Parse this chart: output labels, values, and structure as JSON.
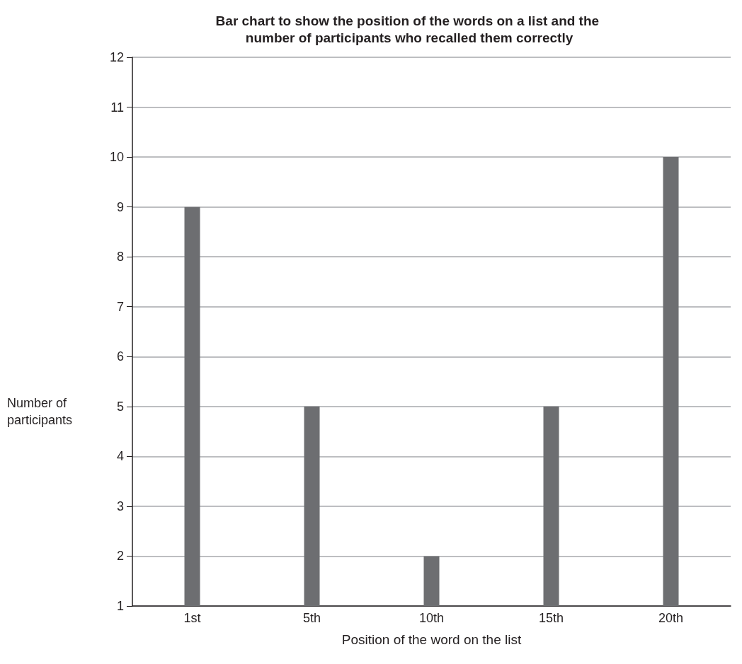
{
  "chart_data": {
    "type": "bar",
    "title": "Bar chart to show the position of the words on a list and the number of participants who recalled them correctly",
    "categories": [
      "1st",
      "5th",
      "10th",
      "15th",
      "20th"
    ],
    "values": [
      9,
      5,
      2,
      5,
      10
    ],
    "color": "#6d6e71",
    "xlabel": "Position of the word on the list",
    "ylabel": "Number of participants",
    "ylim": [
      1,
      12
    ],
    "yticks": [
      1,
      2,
      3,
      4,
      5,
      6,
      7,
      8,
      9,
      10,
      11,
      12
    ],
    "grid": "y"
  }
}
